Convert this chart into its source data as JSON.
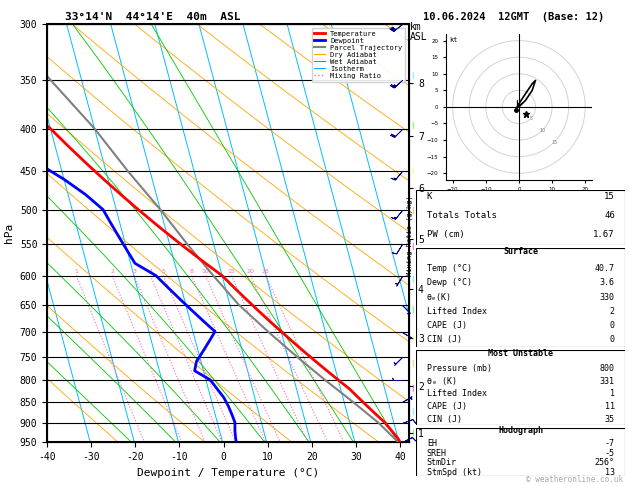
{
  "title_left": "33°14'N  44°14'E  40m  ASL",
  "title_right": "10.06.2024  12GMT  (Base: 12)",
  "xlabel": "Dewpoint / Temperature (°C)",
  "ylabel_left": "hPa",
  "pressure_levels": [
    300,
    350,
    400,
    450,
    500,
    550,
    600,
    650,
    700,
    750,
    800,
    850,
    900,
    950
  ],
  "km_levels": [
    8,
    7,
    6,
    5,
    4,
    3,
    2,
    1
  ],
  "km_pressures": [
    357,
    411,
    472,
    540,
    616,
    701,
    795,
    899
  ],
  "x_min": -40,
  "x_max": 40,
  "isotherm_color": "#00bfff",
  "dryadiabat_color": "#ffa500",
  "wetadiabat_color": "#00c800",
  "mixingratio_color": "#ff69b4",
  "temp_profile_pressure": [
    300,
    320,
    340,
    360,
    380,
    400,
    420,
    440,
    460,
    480,
    500,
    520,
    540,
    560,
    580,
    600,
    620,
    640,
    660,
    680,
    700,
    720,
    740,
    760,
    780,
    800,
    820,
    840,
    860,
    880,
    900,
    920,
    940,
    960
  ],
  "temp_profile_temp": [
    -40,
    -36,
    -32,
    -28,
    -24,
    -20,
    -17,
    -14,
    -11,
    -8,
    -5,
    -2,
    1,
    4,
    7,
    10,
    12,
    14,
    16,
    18,
    20,
    22,
    24,
    26,
    28,
    30,
    32,
    33.5,
    35,
    36.5,
    38,
    39,
    40,
    40.5
  ],
  "dewp_profile_pressure": [
    300,
    320,
    340,
    360,
    380,
    400,
    420,
    440,
    460,
    480,
    500,
    520,
    540,
    560,
    580,
    600,
    620,
    640,
    660,
    680,
    700,
    720,
    740,
    760,
    780,
    800,
    820,
    840,
    860,
    880,
    900,
    920,
    940,
    960
  ],
  "dewp_profile_temp": [
    -55,
    -50,
    -45,
    -42,
    -38,
    -35,
    -30,
    -25,
    -20,
    -16,
    -13,
    -12,
    -11,
    -10,
    -9,
    -5,
    -3,
    -1,
    1,
    3,
    5,
    3,
    1,
    -1,
    -2,
    1,
    2,
    3,
    3.5,
    3.8,
    4,
    3.5,
    3.2,
    3.0
  ],
  "parcel_profile_pressure": [
    960,
    900,
    850,
    800,
    750,
    700,
    650,
    600,
    550,
    500,
    450,
    400,
    350,
    300
  ],
  "parcel_profile_temp": [
    40.5,
    36.5,
    32,
    27,
    22,
    17,
    12,
    8,
    4,
    0,
    -5,
    -10,
    -17,
    -25
  ],
  "mixing_ratio_lines": [
    1,
    2,
    3,
    4,
    5,
    8,
    10,
    15,
    20,
    25
  ],
  "temp_color": "#ff0000",
  "dewp_color": "#0000ff",
  "parcel_color": "#808080",
  "legend_items": [
    {
      "label": "Temperature",
      "color": "#ff0000",
      "style": "-",
      "lw": 2
    },
    {
      "label": "Dewpoint",
      "color": "#0000ff",
      "style": "-",
      "lw": 2
    },
    {
      "label": "Parcel Trajectory",
      "color": "#808080",
      "style": "-",
      "lw": 1.5
    },
    {
      "label": "Dry Adiabat",
      "color": "#ffa500",
      "style": "-",
      "lw": 0.8
    },
    {
      "label": "Wet Adiabat",
      "color": "#00c800",
      "style": "-",
      "lw": 0.8
    },
    {
      "label": "Isotherm",
      "color": "#00bfff",
      "style": "-",
      "lw": 0.8
    },
    {
      "label": "Mixing Ratio",
      "color": "#ff69b4",
      "style": ":",
      "lw": 1
    }
  ],
  "table_K": "15",
  "table_TT": "46",
  "table_PW": "1.67",
  "surf_temp": "40.7",
  "surf_dewp": "3.6",
  "surf_thetae": "330",
  "surf_li": "2",
  "surf_cape": "0",
  "surf_cin": "0",
  "mu_pres": "800",
  "mu_thetae": "331",
  "mu_li": "1",
  "mu_cape": "11",
  "mu_cin": "35",
  "hodo_eh": "-7",
  "hodo_sreh": "-5",
  "hodo_stmdir": "256°",
  "hodo_stmspd": "13",
  "wind_pressures": [
    300,
    350,
    400,
    450,
    500,
    550,
    600,
    650,
    700,
    750,
    800,
    850,
    900,
    950
  ],
  "wind_u": [
    25,
    20,
    15,
    10,
    8,
    5,
    3,
    -3,
    -5,
    3,
    5,
    -5,
    -8,
    -10
  ],
  "wind_v": [
    20,
    18,
    15,
    12,
    10,
    8,
    5,
    3,
    3,
    3,
    0,
    -3,
    -3,
    -5
  ],
  "hodograph_u": [
    0,
    2,
    4,
    5,
    4,
    2,
    0,
    -1
  ],
  "hodograph_v": [
    0,
    2,
    5,
    8,
    7,
    4,
    1,
    -1
  ],
  "copyright": "© weatheronline.co.uk",
  "skew_slope": 22
}
